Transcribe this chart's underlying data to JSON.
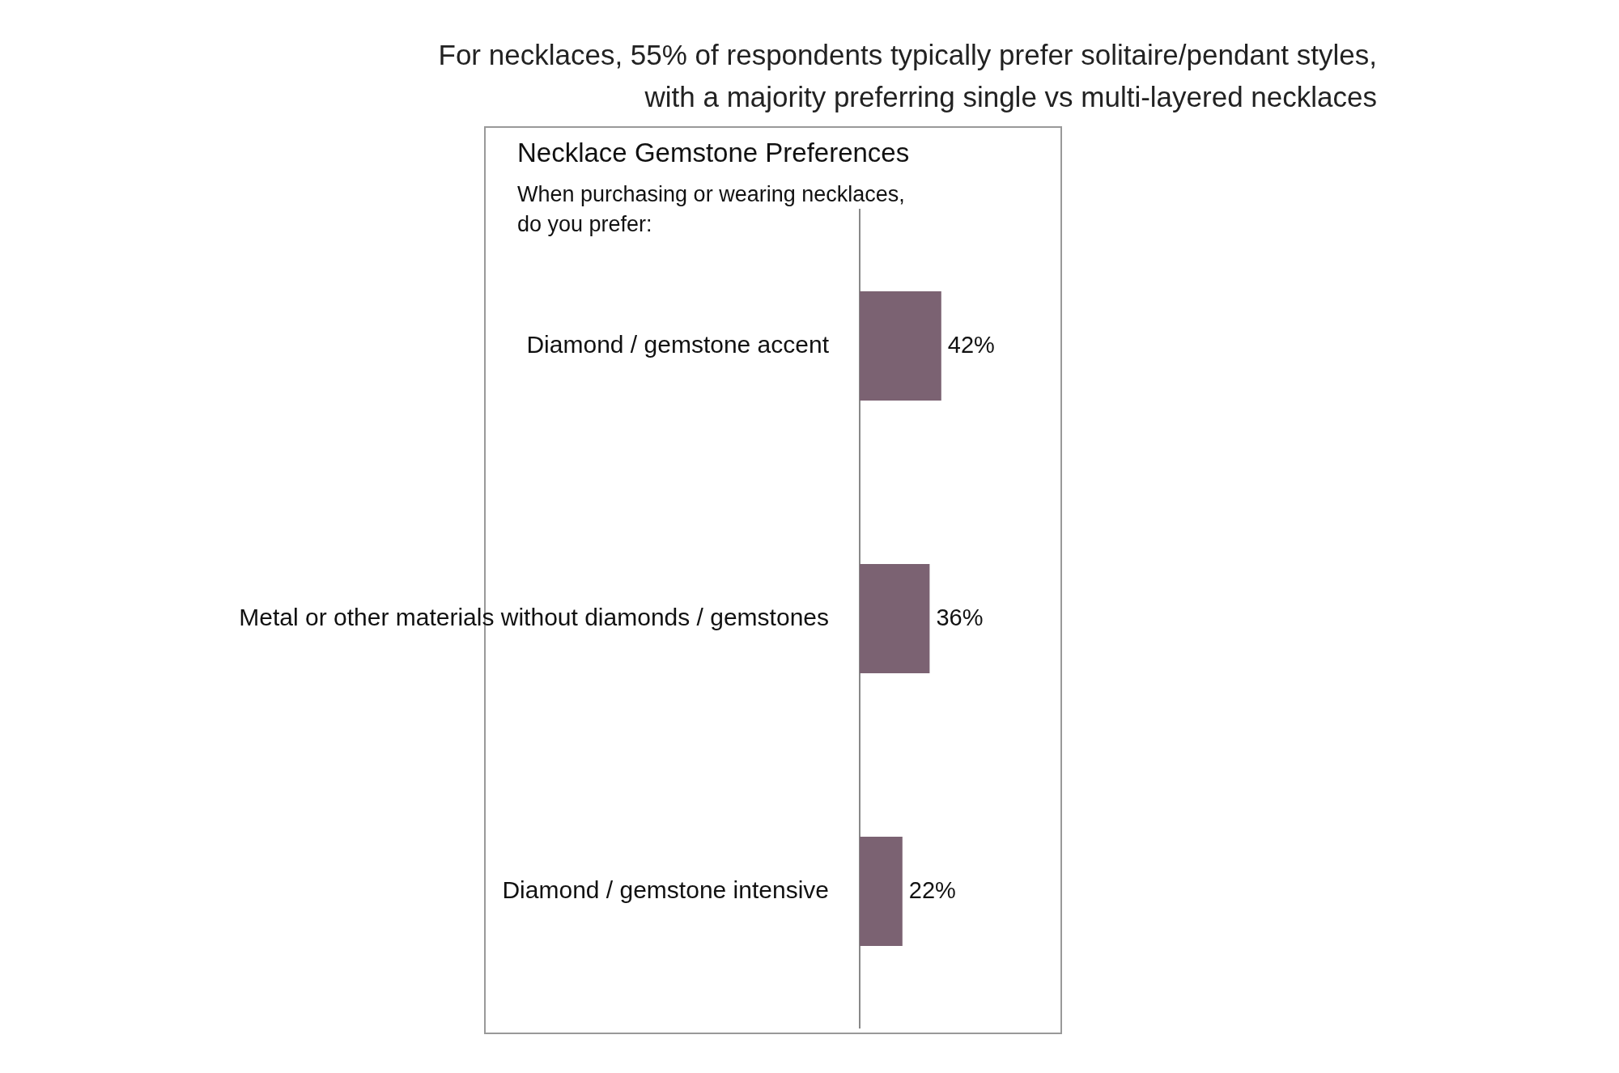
{
  "chart_data": {
    "type": "bar",
    "orientation": "horizontal",
    "title": "For necklaces, 55% of respondents typically prefer solitaire/pendant styles,\nwith a majority preferring single vs multi-layered necklaces",
    "subtitle": "Necklace Gemstone Preferences",
    "annotations": [
      "When purchasing or wearing necklaces,\ndo you prefer:"
    ],
    "categories": [
      "Diamond / gemstone accent",
      "Metal or other materials without diamonds / gemstones",
      "Diamond / gemstone intensive"
    ],
    "values": [
      42,
      36,
      22
    ],
    "color": "#7b6272",
    "value_labels": [
      "42%",
      "36%",
      "22%"
    ],
    "tick_labels": "y",
    "legend": false
  }
}
